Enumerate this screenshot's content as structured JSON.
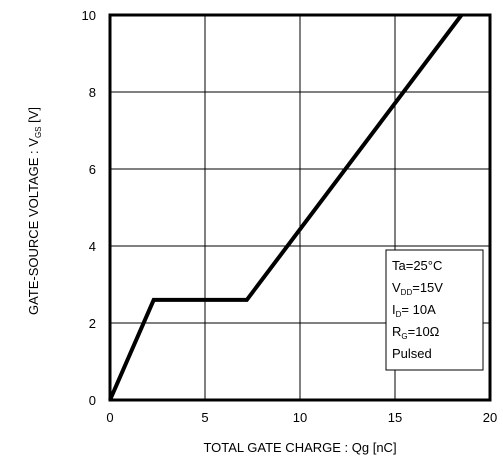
{
  "chart_data": {
    "type": "line",
    "xlabel": "TOTAL GATE CHARGE : Qg  [nC]",
    "ylabel": "GATE-SOURCE VOLTAGE : V",
    "ylabel_sub": "GS",
    "ylabel_unit": " [V]",
    "xlim": [
      0,
      20
    ],
    "ylim": [
      0,
      10
    ],
    "x_ticks": [
      "0",
      "5",
      "10",
      "15",
      "20"
    ],
    "y_ticks": [
      "0",
      "2",
      "4",
      "6",
      "8",
      "10"
    ],
    "grid": true,
    "series": [
      {
        "x": [
          0,
          2.3,
          7.2,
          18.5
        ],
        "y": [
          0,
          2.6,
          2.6,
          10
        ]
      }
    ],
    "annotation": {
      "lines": [
        {
          "parts": [
            {
              "t": "Ta=25°C"
            }
          ]
        },
        {
          "parts": [
            {
              "t": "V"
            },
            {
              "t": "DD",
              "sub": true
            },
            {
              "t": "=15V"
            }
          ]
        },
        {
          "parts": [
            {
              "t": "I"
            },
            {
              "t": "D",
              "sub": true
            },
            {
              "t": "= 10A"
            }
          ]
        },
        {
          "parts": [
            {
              "t": "R"
            },
            {
              "t": "G",
              "sub": true
            },
            {
              "t": "=10Ω"
            }
          ]
        },
        {
          "parts": [
            {
              "t": "Pulsed"
            }
          ]
        }
      ]
    }
  }
}
